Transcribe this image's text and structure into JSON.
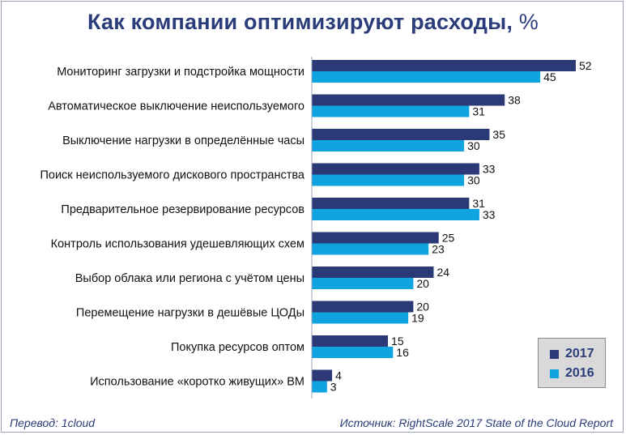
{
  "header": {
    "title": "Как компании оптимизируют расходы,",
    "title_unit": "%"
  },
  "chart_data": {
    "type": "bar",
    "orientation": "horizontal",
    "categories": [
      "Мониторинг загрузки и подстройка мощности",
      "Автоматическое выключение неиспользуемого",
      "Выключение нагрузки в определённые часы",
      "Поиск неиспользуемого дискового пространства",
      "Предварительное резервирование ресурсов",
      "Контроль использования удешевляющих схем",
      "Выбор облака или региона с учётом цены",
      "Перемещение нагрузки в дешёвые ЦОДы",
      "Покупка ресурсов оптом",
      "Использование «коротко живущих» ВМ"
    ],
    "series": [
      {
        "name": "2017",
        "color": "#2b3a77",
        "values": [
          52,
          38,
          35,
          33,
          31,
          25,
          24,
          20,
          15,
          4
        ]
      },
      {
        "name": "2016",
        "color": "#0fa3e0",
        "values": [
          45,
          31,
          30,
          30,
          33,
          23,
          20,
          19,
          16,
          3
        ]
      }
    ],
    "xlim": [
      0,
      60
    ],
    "grid": false,
    "data_labels": true,
    "legend_position": "bottom-right"
  },
  "footer": {
    "translation": "Перевод: 1cloud",
    "source": "Источник: RightScale 2017 State of the Cloud Report"
  }
}
